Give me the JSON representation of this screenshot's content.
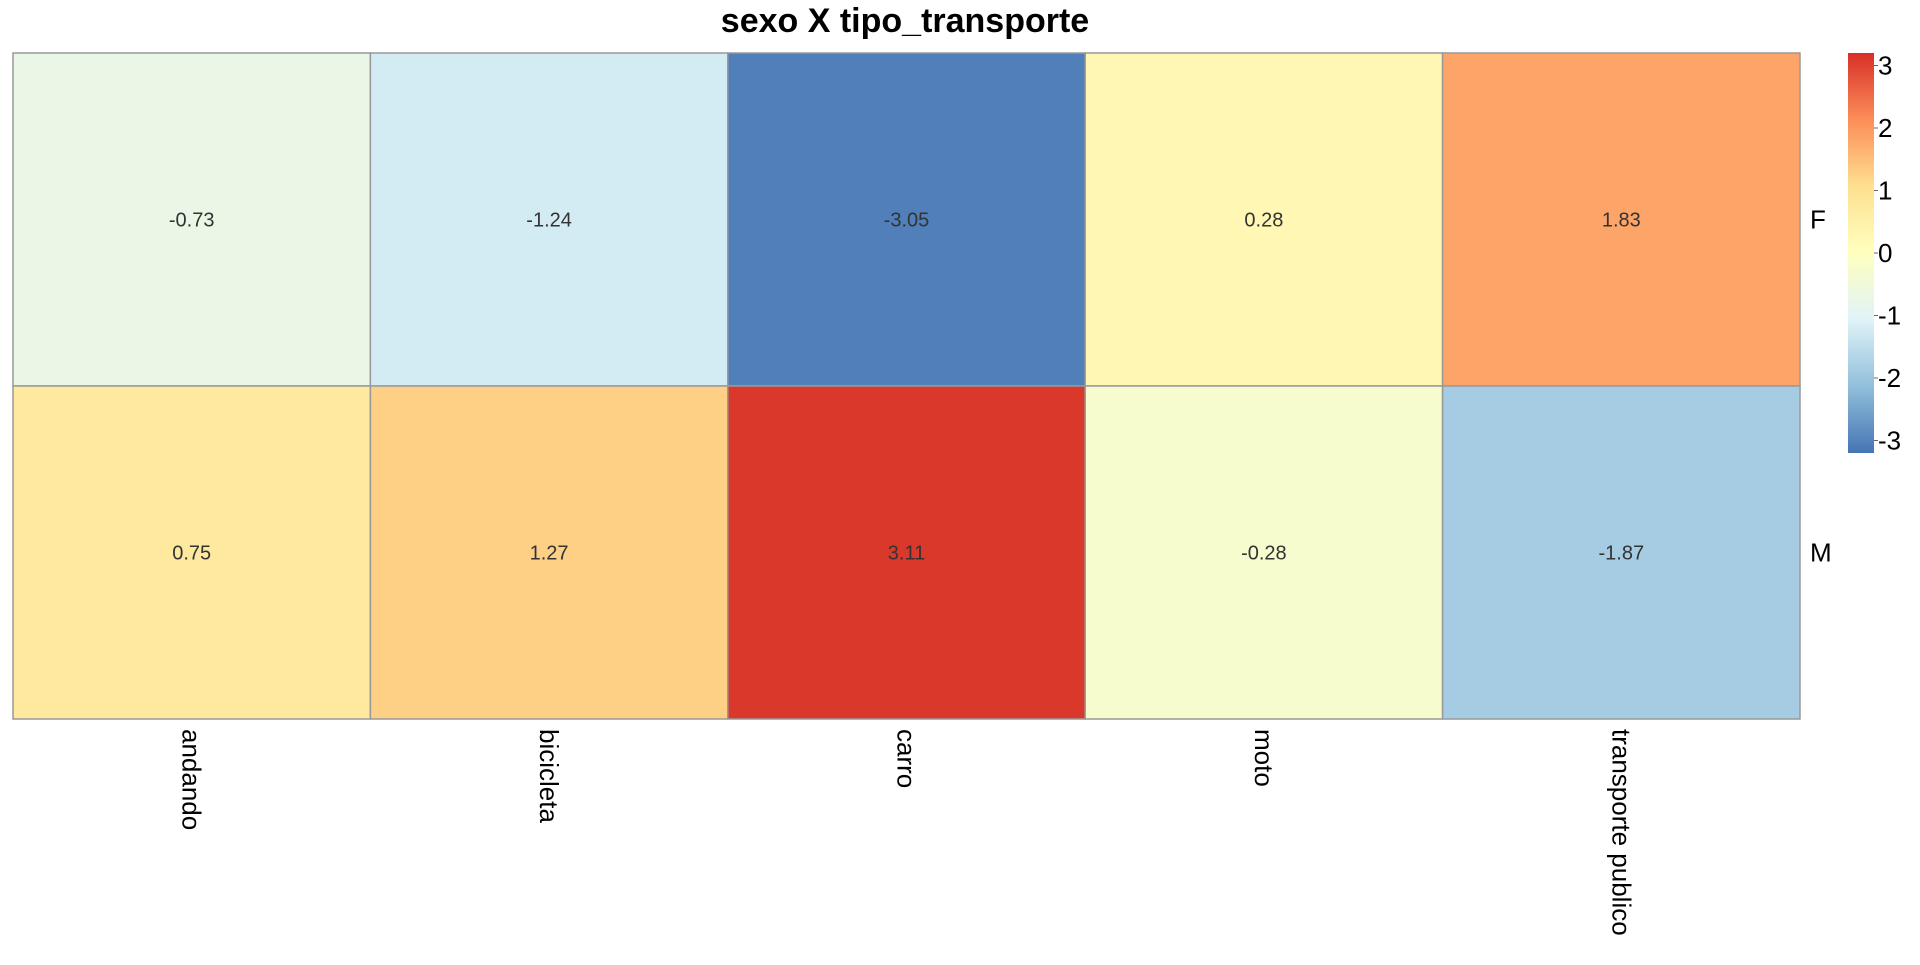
{
  "chart_data": {
    "type": "heatmap",
    "title": "sexo X tipo_transporte",
    "columns": [
      "andando",
      "bicicleta",
      "carro",
      "moto",
      "transporte publico"
    ],
    "rows": [
      "F",
      "M"
    ],
    "values": [
      [
        -0.73,
        -1.24,
        -3.05,
        0.28,
        1.83
      ],
      [
        0.75,
        1.27,
        3.11,
        -0.28,
        -1.87
      ]
    ],
    "labels": [
      [
        "-0.73",
        "-1.24",
        "-3.05",
        "0.28",
        "1.83"
      ],
      [
        "0.75",
        "1.27",
        "3.11",
        "-0.28",
        "-1.87"
      ]
    ],
    "legend": {
      "min": -3.2,
      "max": 3.2,
      "ticks": [
        3,
        2,
        1,
        0,
        -1,
        -2,
        -3
      ],
      "tick_labels": [
        "3",
        "2",
        "1",
        "0",
        "-1",
        "-2",
        "-3"
      ],
      "placement": "right"
    },
    "colors": {
      "cell_border": "#999999",
      "scale": [
        "#4575B4",
        "#91BFDB",
        "#E0F3F8",
        "#FFFFBF",
        "#FEE090",
        "#FC8D59",
        "#D73027"
      ]
    }
  }
}
